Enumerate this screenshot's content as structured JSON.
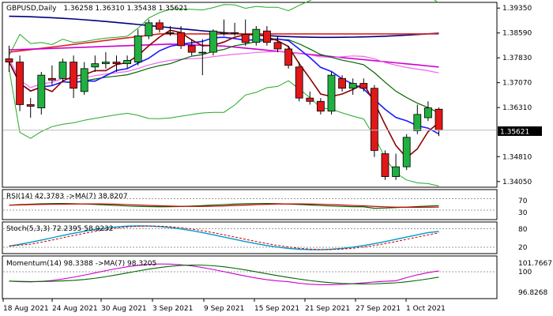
{
  "header": {
    "symbol": "GBPUSD,Daily",
    "ohlc": "1.36258 1.36310 1.35438 1.35621"
  },
  "price_axis": {
    "ticks": [
      "1.39350",
      "1.38590",
      "1.37830",
      "1.37070",
      "1.36310",
      "1.35621",
      "1.34810",
      "1.34050"
    ],
    "current_price": "1.35621"
  },
  "rsi_panel": {
    "label": "RSI(14) 42.3783 ->MA(7) 38.8207",
    "levels": [
      "70",
      "30"
    ]
  },
  "stoch_panel": {
    "label": "Stoch(5,3,3) 72.2395 58.9232",
    "levels": [
      "80",
      "20"
    ]
  },
  "momentum_panel": {
    "label": "Momentum(14) 98.3388 ->MA(7) 98.3205",
    "levels": [
      "101.7667",
      "100",
      "96.8268"
    ]
  },
  "time_axis": {
    "labels": [
      "18 Aug 2021",
      "24 Aug 2021",
      "30 Aug 2021",
      "3 Sep 2021",
      "9 Sep 2021",
      "15 Sep 2021",
      "21 Sep 2021",
      "27 Sep 2021",
      "1 Oct 2021"
    ]
  },
  "colors": {
    "bull": "#20b040",
    "bear": "#e01818",
    "ma_fast": "#1a1aff",
    "ma_red": "#8b0000",
    "ma_navy": "#000080",
    "ma_red_long": "#dd2222",
    "ma_magenta": "#cc00cc",
    "ma_violet": "#ee66ee",
    "ma_green": "#006600",
    "bb": "#22aa22",
    "rsi_line": "#006600",
    "rsi_ma": "#cc0000",
    "stoch_main": "#0099cc",
    "stoch_signal": "#cc0000",
    "mom_line": "#cc00cc",
    "mom_ma": "#006600"
  },
  "chart_data": {
    "type": "candlestick",
    "title": "GBPUSD,Daily",
    "candles": [
      {
        "o": 1.378,
        "h": 1.382,
        "l": 1.374,
        "c": 1.377
      },
      {
        "o": 1.377,
        "h": 1.379,
        "l": 1.362,
        "c": 1.364
      },
      {
        "o": 1.364,
        "h": 1.366,
        "l": 1.36,
        "c": 1.3635
      },
      {
        "o": 1.363,
        "h": 1.374,
        "l": 1.361,
        "c": 1.373
      },
      {
        "o": 1.372,
        "h": 1.376,
        "l": 1.37,
        "c": 1.3715
      },
      {
        "o": 1.372,
        "h": 1.378,
        "l": 1.371,
        "c": 1.377
      },
      {
        "o": 1.377,
        "h": 1.379,
        "l": 1.366,
        "c": 1.369
      },
      {
        "o": 1.368,
        "h": 1.377,
        "l": 1.367,
        "c": 1.375
      },
      {
        "o": 1.3755,
        "h": 1.379,
        "l": 1.374,
        "c": 1.3765
      },
      {
        "o": 1.3765,
        "h": 1.38,
        "l": 1.375,
        "c": 1.377
      },
      {
        "o": 1.377,
        "h": 1.379,
        "l": 1.374,
        "c": 1.3765
      },
      {
        "o": 1.3765,
        "h": 1.379,
        "l": 1.375,
        "c": 1.3775
      },
      {
        "o": 1.377,
        "h": 1.387,
        "l": 1.376,
        "c": 1.385
      },
      {
        "o": 1.385,
        "h": 1.39,
        "l": 1.384,
        "c": 1.389
      },
      {
        "o": 1.389,
        "h": 1.39,
        "l": 1.386,
        "c": 1.387
      },
      {
        "o": 1.386,
        "h": 1.388,
        "l": 1.385,
        "c": 1.386
      },
      {
        "o": 1.386,
        "h": 1.388,
        "l": 1.381,
        "c": 1.382
      },
      {
        "o": 1.382,
        "h": 1.384,
        "l": 1.379,
        "c": 1.38
      },
      {
        "o": 1.38,
        "h": 1.384,
        "l": 1.373,
        "c": 1.38
      },
      {
        "o": 1.38,
        "h": 1.387,
        "l": 1.379,
        "c": 1.3865
      },
      {
        "o": 1.386,
        "h": 1.39,
        "l": 1.385,
        "c": 1.386
      },
      {
        "o": 1.386,
        "h": 1.389,
        "l": 1.385,
        "c": 1.386
      },
      {
        "o": 1.3855,
        "h": 1.39,
        "l": 1.382,
        "c": 1.383
      },
      {
        "o": 1.383,
        "h": 1.388,
        "l": 1.382,
        "c": 1.387
      },
      {
        "o": 1.3865,
        "h": 1.388,
        "l": 1.382,
        "c": 1.383
      },
      {
        "o": 1.383,
        "h": 1.385,
        "l": 1.38,
        "c": 1.381
      },
      {
        "o": 1.381,
        "h": 1.382,
        "l": 1.375,
        "c": 1.376
      },
      {
        "o": 1.3755,
        "h": 1.377,
        "l": 1.365,
        "c": 1.366
      },
      {
        "o": 1.366,
        "h": 1.368,
        "l": 1.364,
        "c": 1.365
      },
      {
        "o": 1.365,
        "h": 1.366,
        "l": 1.361,
        "c": 1.362
      },
      {
        "o": 1.362,
        "h": 1.374,
        "l": 1.361,
        "c": 1.373
      },
      {
        "o": 1.372,
        "h": 1.373,
        "l": 1.368,
        "c": 1.369
      },
      {
        "o": 1.369,
        "h": 1.372,
        "l": 1.367,
        "c": 1.3705
      },
      {
        "o": 1.3705,
        "h": 1.372,
        "l": 1.368,
        "c": 1.369
      },
      {
        "o": 1.369,
        "h": 1.37,
        "l": 1.348,
        "c": 1.35
      },
      {
        "o": 1.349,
        "h": 1.35,
        "l": 1.341,
        "c": 1.342
      },
      {
        "o": 1.342,
        "h": 1.349,
        "l": 1.341,
        "c": 1.345
      },
      {
        "o": 1.345,
        "h": 1.355,
        "l": 1.344,
        "c": 1.354
      },
      {
        "o": 1.356,
        "h": 1.364,
        "l": 1.355,
        "c": 1.361
      },
      {
        "o": 1.36,
        "h": 1.365,
        "l": 1.359,
        "c": 1.363
      },
      {
        "o": 1.3626,
        "h": 1.3631,
        "l": 1.3544,
        "c": 1.3562
      }
    ],
    "price_range": [
      1.339,
      1.395
    ]
  }
}
